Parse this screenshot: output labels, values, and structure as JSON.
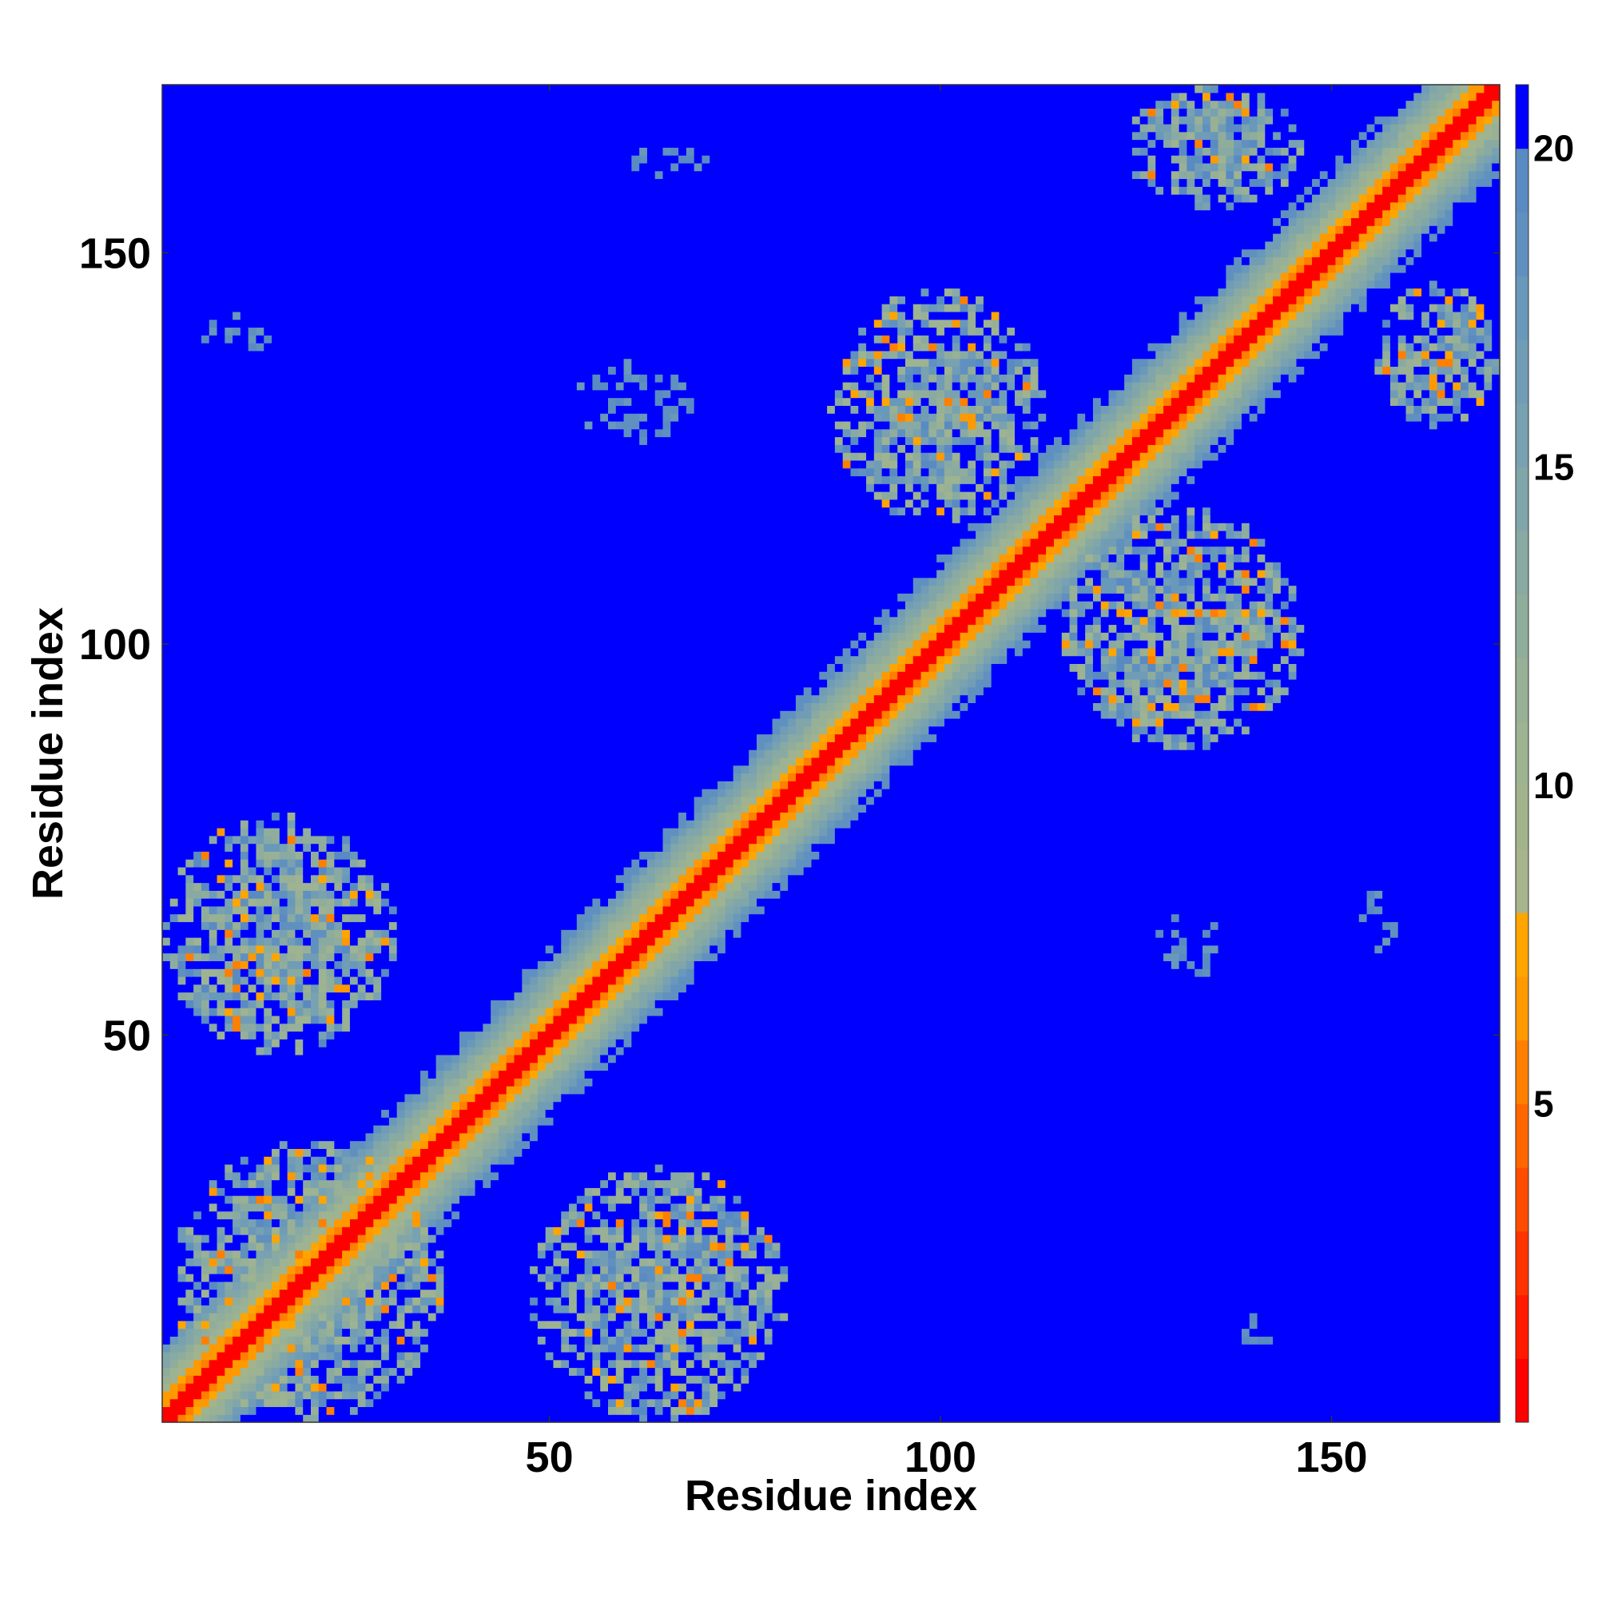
{
  "chart_data": {
    "type": "heatmap",
    "title": "",
    "xlabel": "Residue index",
    "ylabel": "Residue index",
    "n_residues": 171,
    "xlim": [
      1,
      171
    ],
    "ylim": [
      1,
      171
    ],
    "x_ticks": [
      50,
      100,
      150
    ],
    "y_ticks": [
      50,
      100,
      150
    ],
    "colorbar": {
      "range": [
        0,
        21
      ],
      "ticks": [
        5,
        10,
        15,
        20
      ],
      "levels": [
        {
          "max": 1,
          "color": "#ff0000"
        },
        {
          "max": 2,
          "color": "#ff1a00"
        },
        {
          "max": 3,
          "color": "#ff3300"
        },
        {
          "max": 4,
          "color": "#ff4d00"
        },
        {
          "max": 5,
          "color": "#ff6600"
        },
        {
          "max": 6,
          "color": "#ff7f00"
        },
        {
          "max": 7,
          "color": "#ff9900"
        },
        {
          "max": 8,
          "color": "#ffa500"
        },
        {
          "max": 9,
          "color": "#a8b48c"
        },
        {
          "max": 10,
          "color": "#a2b48c"
        },
        {
          "max": 11,
          "color": "#9db391"
        },
        {
          "max": 12,
          "color": "#98b096"
        },
        {
          "max": 13,
          "color": "#90ad9c"
        },
        {
          "max": 14,
          "color": "#89aaa3"
        },
        {
          "max": 15,
          "color": "#80a6aa"
        },
        {
          "max": 16,
          "color": "#78a1b1"
        },
        {
          "max": 17,
          "color": "#709cb6"
        },
        {
          "max": 18,
          "color": "#6898ba"
        },
        {
          "max": 19,
          "color": "#6090bf"
        },
        {
          "max": 20,
          "color": "#5a8ac2"
        },
        {
          "max": 21,
          "color": "#0000ff"
        }
      ]
    },
    "diagonal_contact_band": {
      "from": 1,
      "to": 171
    },
    "contact_clusters": [
      {
        "x": [
          2,
          36
        ],
        "y": [
          1,
          36
        ],
        "center": [
          19,
          19
        ],
        "strength": "high"
      },
      {
        "x": [
          1,
          30
        ],
        "y": [
          48,
          78
        ],
        "center": [
          12,
          66
        ],
        "strength": "medium"
      },
      {
        "x": [
          48,
          80
        ],
        "y": [
          1,
          33
        ],
        "center": [
          64,
          16
        ],
        "strength": "medium"
      },
      {
        "x": [
          86,
          113
        ],
        "y": [
          116,
          145
        ],
        "center": [
          99,
          132
        ],
        "strength": "medium"
      },
      {
        "x": [
          116,
          146
        ],
        "y": [
          87,
          117
        ],
        "center": [
          132,
          99
        ],
        "strength": "medium"
      },
      {
        "x": [
          156,
          171
        ],
        "y": [
          128,
          146
        ],
        "center": [
          164,
          136
        ],
        "strength": "medium"
      },
      {
        "x": [
          124,
          146
        ],
        "y": [
          156,
          171
        ],
        "center": [
          136,
          165
        ],
        "strength": "medium"
      },
      {
        "x": [
          53,
          68
        ],
        "y": [
          126,
          136
        ],
        "center": [
          59,
          131
        ],
        "strength": "sparse"
      },
      {
        "x": [
          128,
          136
        ],
        "y": [
          57,
          67
        ],
        "center": [
          131,
          62
        ],
        "strength": "sparse"
      },
      {
        "x": [
          6,
          16
        ],
        "y": [
          137,
          142
        ],
        "center": [
          11,
          140
        ],
        "strength": "sparse"
      },
      {
        "x": [
          137,
          142
        ],
        "y": [
          7,
          15
        ],
        "center": [
          140,
          11
        ],
        "strength": "sparse"
      },
      {
        "x": [
          59,
          70
        ],
        "y": [
          160,
          164
        ],
        "center": [
          64,
          162
        ],
        "strength": "sparse"
      },
      {
        "x": [
          154,
          158
        ],
        "y": [
          59,
          69
        ],
        "center": [
          156,
          64
        ],
        "strength": "sparse"
      }
    ]
  }
}
